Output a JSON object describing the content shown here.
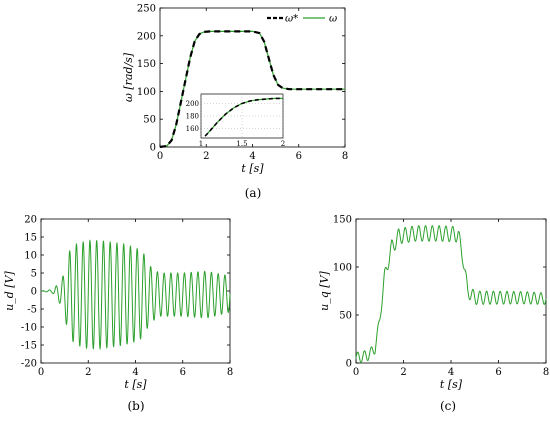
{
  "colors": {
    "green": "#2ca02c",
    "black": "#000000"
  },
  "chart_data": [
    {
      "panel": "a",
      "type": "line",
      "caption": "(a)",
      "xlabel": "t [s]",
      "ylabel": "ω [rad/s]",
      "xlim": [
        0,
        8
      ],
      "ylim": [
        0,
        250
      ],
      "xticks": [
        0,
        2,
        4,
        6,
        8
      ],
      "yticks": [
        0,
        50,
        100,
        150,
        200,
        250
      ],
      "legend": "top-right",
      "grid": false,
      "series": [
        {
          "name": "ω*",
          "style": "dashed",
          "color": "#000000",
          "x": [
            0,
            0.3,
            0.5,
            0.7,
            0.9,
            1.1,
            1.3,
            1.5,
            1.7,
            1.9,
            2.2,
            3.0,
            4.0,
            4.3,
            4.5,
            4.7,
            4.9,
            5.1,
            5.3,
            5.6,
            6.0,
            7.0,
            8.0
          ],
          "y": [
            0,
            2,
            12,
            40,
            80,
            120,
            160,
            190,
            203,
            207,
            208,
            208,
            208,
            205,
            190,
            160,
            130,
            112,
            106,
            104,
            104,
            104,
            104
          ]
        },
        {
          "name": "ω",
          "style": "solid",
          "color": "#2ca02c",
          "x": [
            0,
            0.3,
            0.5,
            0.7,
            0.9,
            1.1,
            1.3,
            1.5,
            1.7,
            1.9,
            2.2,
            3.0,
            4.0,
            4.3,
            4.5,
            4.7,
            4.9,
            5.1,
            5.3,
            5.6,
            6.0,
            7.0,
            8.0
          ],
          "y": [
            0,
            2,
            12,
            40,
            80,
            120,
            160,
            190,
            203,
            207,
            208,
            208,
            208,
            205,
            190,
            160,
            130,
            112,
            106,
            104,
            104,
            104,
            104
          ]
        }
      ],
      "inset": {
        "xlim": [
          1,
          2
        ],
        "ylim": [
          145,
          215
        ],
        "xticks": [
          1,
          1.5,
          2
        ],
        "yticks": [
          160,
          180,
          200
        ],
        "x": [
          1.05,
          1.1,
          1.2,
          1.3,
          1.4,
          1.5,
          1.6,
          1.7,
          1.8,
          1.9,
          2.0
        ],
        "y": [
          148,
          155,
          170,
          183,
          193,
          200,
          204,
          206,
          207,
          208,
          208
        ]
      }
    },
    {
      "panel": "b",
      "type": "line",
      "caption": "(b)",
      "xlabel": "t [s]",
      "ylabel": "u_d [V]",
      "xlim": [
        0,
        8
      ],
      "ylim": [
        -20,
        20
      ],
      "xticks": [
        0,
        2,
        4,
        6,
        8
      ],
      "yticks": [
        -20,
        -15,
        -10,
        -5,
        0,
        5,
        10,
        15,
        20
      ],
      "grid": false,
      "series": [
        {
          "color": "#2ca02c",
          "envelope_t": [
            0,
            0.5,
            0.8,
            1.0,
            1.2,
            1.5,
            2.0,
            2.5,
            3.0,
            3.5,
            4.0,
            4.3,
            4.6,
            5.0,
            6.0,
            7.0,
            8.0
          ],
          "envelope_amp": [
            0,
            0.5,
            3,
            6,
            12,
            14,
            15,
            15,
            14.5,
            14,
            13,
            12,
            8,
            6,
            6,
            6.5,
            5
          ],
          "frequency_hz": 3.5,
          "offset": -1
        }
      ]
    },
    {
      "panel": "c",
      "type": "line",
      "caption": "(c)",
      "xlabel": "t [s]",
      "ylabel": "u_q [V]",
      "xlim": [
        0,
        8
      ],
      "ylim": [
        0,
        150
      ],
      "xticks": [
        0,
        2,
        4,
        6,
        8
      ],
      "yticks": [
        0,
        50,
        100,
        150
      ],
      "grid": false,
      "series": [
        {
          "color": "#2ca02c",
          "base_t": [
            0,
            0.5,
            0.8,
            1.0,
            1.2,
            1.5,
            1.8,
            2.5,
            3.5,
            4.3,
            4.5,
            4.7,
            5.0,
            6.0,
            7.0,
            8.0
          ],
          "base_v": [
            5,
            8,
            15,
            45,
            90,
            120,
            132,
            135,
            135,
            134,
            110,
            75,
            68,
            68,
            68,
            67
          ],
          "ripple_t": [
            0,
            1.0,
            1.5,
            4.3,
            4.5,
            5.0,
            8.0
          ],
          "ripple_amp": [
            6,
            5,
            8,
            8,
            7,
            7,
            6
          ],
          "frequency_hz": 3.5
        }
      ]
    }
  ]
}
